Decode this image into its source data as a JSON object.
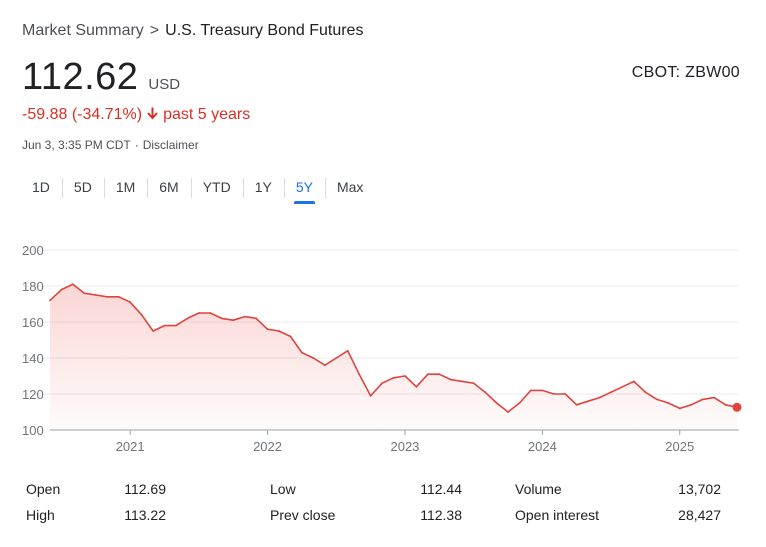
{
  "breadcrumb": {
    "root": "Market Summary",
    "separator": ">",
    "current": "U.S. Treasury Bond Futures"
  },
  "quote": {
    "price": "112.62",
    "currency": "USD",
    "ticker": "CBOT: ZBW00",
    "change": "-59.88 (-34.71%)",
    "change_arrow_icon": "arrow-down-icon",
    "change_period": "past 5 years",
    "timestamp": "Jun 3, 3:35 PM CDT",
    "disclaimer": "Disclaimer"
  },
  "tabs": [
    {
      "label": "1D",
      "active": false
    },
    {
      "label": "5D",
      "active": false
    },
    {
      "label": "1M",
      "active": false
    },
    {
      "label": "6M",
      "active": false
    },
    {
      "label": "YTD",
      "active": false
    },
    {
      "label": "1Y",
      "active": false
    },
    {
      "label": "5Y",
      "active": true
    },
    {
      "label": "Max",
      "active": false
    }
  ],
  "colors": {
    "line": "#e0443e",
    "down": "#d93025",
    "accent": "#1a73e8"
  },
  "chart_data": {
    "type": "area",
    "ylim": [
      100,
      200
    ],
    "yticks": [
      100,
      120,
      140,
      160,
      180,
      200
    ],
    "xticks": [
      "2021",
      "2022",
      "2023",
      "2024",
      "2025"
    ],
    "grid": "horizontal",
    "x_start": "2020-06",
    "x_end": "2025-06",
    "series": [
      {
        "points": [
          [
            "2020-06",
            172
          ],
          [
            "2020-07",
            178
          ],
          [
            "2020-08",
            181
          ],
          [
            "2020-09",
            176
          ],
          [
            "2020-10",
            175
          ],
          [
            "2020-11",
            174
          ],
          [
            "2020-12",
            174
          ],
          [
            "2021-01",
            171
          ],
          [
            "2021-02",
            164
          ],
          [
            "2021-03",
            155
          ],
          [
            "2021-04",
            158
          ],
          [
            "2021-05",
            158
          ],
          [
            "2021-06",
            162
          ],
          [
            "2021-07",
            165
          ],
          [
            "2021-08",
            165
          ],
          [
            "2021-09",
            162
          ],
          [
            "2021-10",
            161
          ],
          [
            "2021-11",
            163
          ],
          [
            "2021-12",
            162
          ],
          [
            "2022-01",
            156
          ],
          [
            "2022-02",
            155
          ],
          [
            "2022-03",
            152
          ],
          [
            "2022-04",
            143
          ],
          [
            "2022-05",
            140
          ],
          [
            "2022-06",
            136
          ],
          [
            "2022-07",
            140
          ],
          [
            "2022-08",
            144
          ],
          [
            "2022-09",
            131
          ],
          [
            "2022-10",
            119
          ],
          [
            "2022-11",
            126
          ],
          [
            "2022-12",
            129
          ],
          [
            "2023-01",
            130
          ],
          [
            "2023-02",
            124
          ],
          [
            "2023-03",
            131
          ],
          [
            "2023-04",
            131
          ],
          [
            "2023-05",
            128
          ],
          [
            "2023-06",
            127
          ],
          [
            "2023-07",
            126
          ],
          [
            "2023-08",
            121
          ],
          [
            "2023-09",
            115
          ],
          [
            "2023-10",
            110
          ],
          [
            "2023-11",
            115
          ],
          [
            "2023-12",
            122
          ],
          [
            "2024-01",
            122
          ],
          [
            "2024-02",
            120
          ],
          [
            "2024-03",
            120
          ],
          [
            "2024-04",
            114
          ],
          [
            "2024-05",
            116
          ],
          [
            "2024-06",
            118
          ],
          [
            "2024-07",
            121
          ],
          [
            "2024-08",
            124
          ],
          [
            "2024-09",
            127
          ],
          [
            "2024-10",
            121
          ],
          [
            "2024-11",
            117
          ],
          [
            "2024-12",
            115
          ],
          [
            "2025-01",
            112
          ],
          [
            "2025-02",
            114
          ],
          [
            "2025-03",
            117
          ],
          [
            "2025-04",
            118
          ],
          [
            "2025-05",
            114
          ],
          [
            "2025-06",
            112.62
          ]
        ]
      }
    ]
  },
  "stats": [
    [
      {
        "label": "Open",
        "value": "112.69"
      },
      {
        "label": "Low",
        "value": "112.44"
      },
      {
        "label": "Volume",
        "value": "13,702"
      }
    ],
    [
      {
        "label": "High",
        "value": "113.22"
      },
      {
        "label": "Prev close",
        "value": "112.38"
      },
      {
        "label": "Open interest",
        "value": "28,427"
      }
    ]
  ]
}
